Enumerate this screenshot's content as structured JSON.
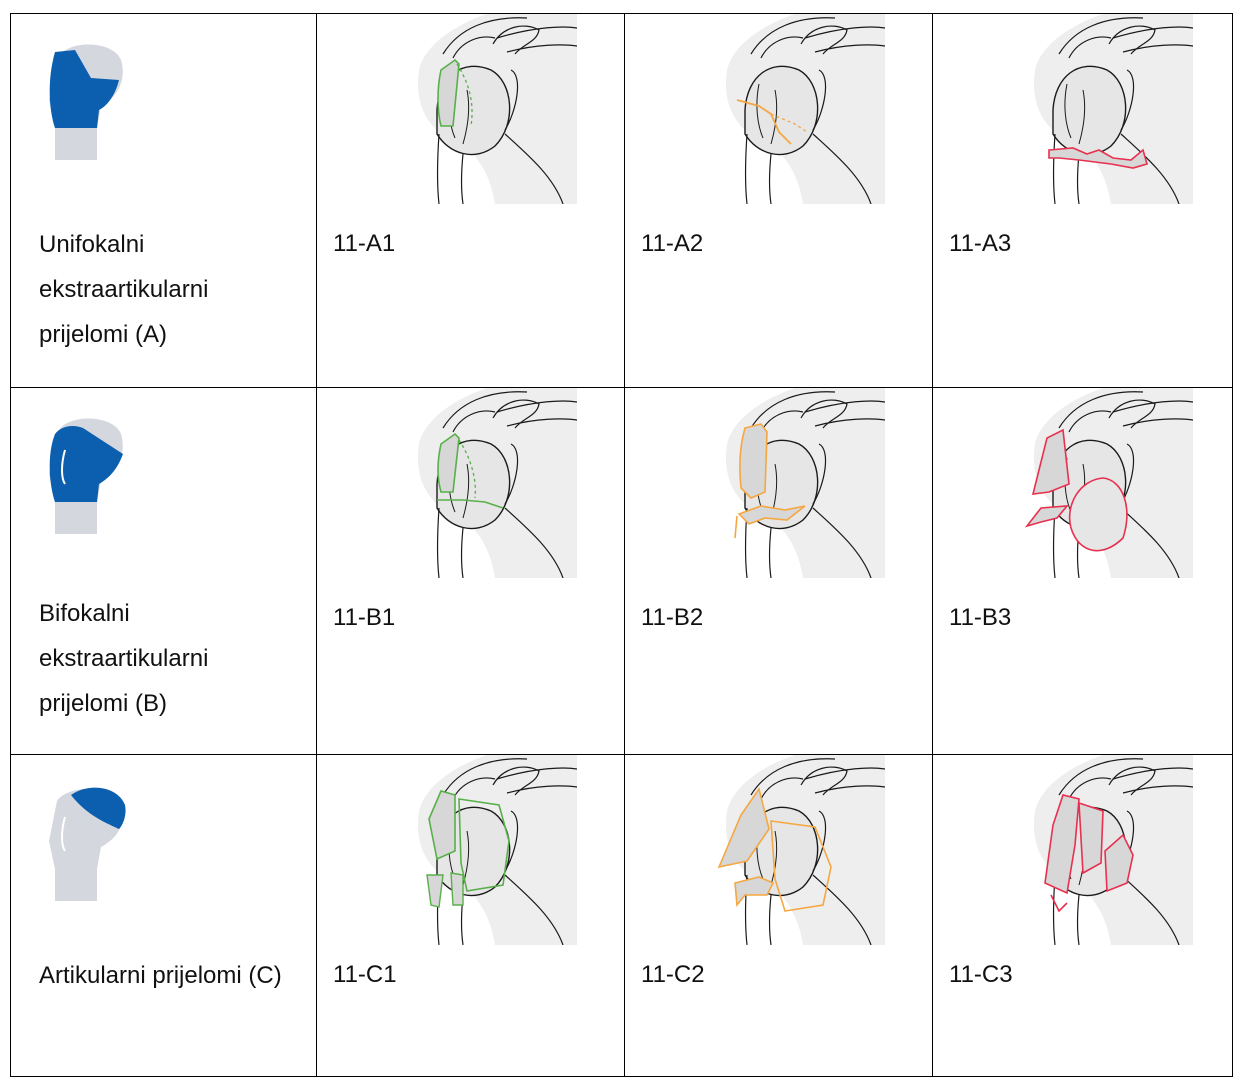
{
  "colors": {
    "bone_fill": "#ececec",
    "bone_stroke": "#1a1a1a",
    "segment_blue": "#0b5fae",
    "segment_grey": "#d4d7de",
    "green": "#59b04a",
    "orange": "#f5a742",
    "red": "#e8304f"
  },
  "rows": [
    {
      "label": "Unifokalni ekstraartikularni prijelomi (A)",
      "icon": "humerus-segment-a-icon",
      "cells": [
        {
          "code": "11-A1",
          "accent": "green"
        },
        {
          "code": "11-A2",
          "accent": "orange"
        },
        {
          "code": "11-A3",
          "accent": "red"
        }
      ]
    },
    {
      "label": "Bifokalni ekstraartikularni prijelomi (B)",
      "icon": "humerus-segment-b-icon",
      "cells": [
        {
          "code": "11-B1",
          "accent": "green"
        },
        {
          "code": "11-B2",
          "accent": "orange"
        },
        {
          "code": "11-B3",
          "accent": "red"
        }
      ]
    },
    {
      "label": "Artikularni prijelomi (C)",
      "icon": "humerus-segment-c-icon",
      "cells": [
        {
          "code": "11-C1",
          "accent": "green"
        },
        {
          "code": "11-C2",
          "accent": "orange"
        },
        {
          "code": "11-C3",
          "accent": "red"
        }
      ]
    }
  ]
}
